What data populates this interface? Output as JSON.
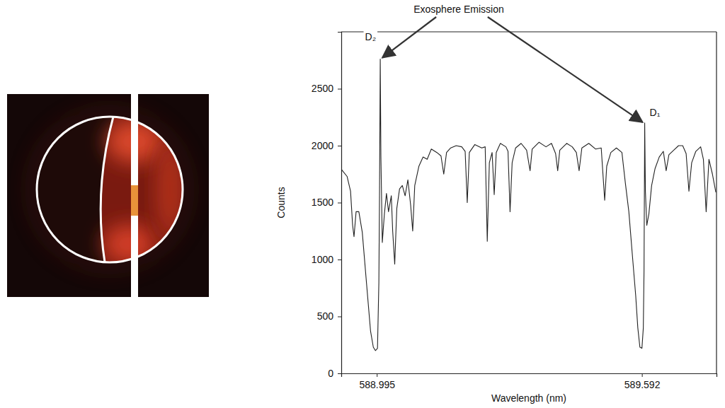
{
  "chart_data": {
    "type": "line",
    "x_label": "Wavelength (nm)",
    "y_label": "Counts",
    "annotation": "Exosphere Emission",
    "peak_labels": [
      "D₂",
      "D₁"
    ],
    "color": "#222222",
    "grid": false,
    "xlim": [
      588.915,
      589.76
    ],
    "ylim": [
      0,
      3000
    ],
    "xticks": [
      588.995,
      589.592
    ],
    "yticks": [
      0,
      500,
      1000,
      1500,
      2000,
      2500
    ],
    "x": [
      588.9157,
      588.9281,
      588.9359,
      588.9406,
      588.9437,
      588.9484,
      588.9546,
      588.9623,
      588.9717,
      588.981,
      588.9872,
      588.9919,
      588.9966,
      588.9997,
      589.0012,
      589.0028,
      589.0043,
      589.0074,
      589.0121,
      589.0168,
      589.0214,
      589.0277,
      589.0308,
      589.0354,
      589.0401,
      589.0463,
      589.0525,
      589.0588,
      589.065,
      589.0712,
      589.0759,
      589.0805,
      589.0899,
      589.0992,
      589.1085,
      589.1178,
      589.1303,
      589.1396,
      589.1458,
      589.1521,
      589.1614,
      589.1738,
      589.1863,
      589.194,
      589.1987,
      589.2034,
      589.2158,
      589.2314,
      589.2391,
      589.2438,
      589.2485,
      589.2547,
      589.2594,
      589.264,
      589.2733,
      589.2858,
      589.2905,
      589.2951,
      589.2998,
      589.3076,
      589.32,
      589.3324,
      589.3402,
      589.3449,
      589.3604,
      589.376,
      589.3884,
      589.3977,
      589.4024,
      589.4071,
      589.4226,
      589.4351,
      589.4444,
      589.4506,
      589.4568,
      589.4724,
      589.4879,
      589.5004,
      589.5082,
      589.5128,
      589.5221,
      589.5346,
      589.547,
      589.5548,
      589.5626,
      589.5703,
      589.5781,
      589.5828,
      589.5875,
      589.5921,
      589.5952,
      589.5968,
      589.5983,
      589.5999,
      589.603,
      589.6077,
      589.6139,
      589.6217,
      589.631,
      589.6403,
      589.6466,
      589.6528,
      589.6637,
      589.6745,
      589.6839,
      589.6916,
      589.6979,
      589.7041,
      589.7134,
      589.7243,
      589.7305,
      589.7367,
      589.743,
      589.7508,
      589.7585
    ],
    "values": [
      1790,
      1730,
      1600,
      1300,
      1200,
      1420,
      1420,
      1240,
      800,
      370,
      230,
      200,
      220,
      800,
      1600,
      2760,
      1900,
      1150,
      1400,
      1580,
      1420,
      1560,
      1250,
      960,
      1450,
      1620,
      1650,
      1560,
      1700,
      1480,
      1250,
      1650,
      1820,
      1900,
      1880,
      1970,
      1940,
      1910,
      1750,
      1940,
      1980,
      2000,
      1990,
      1950,
      1500,
      1940,
      2010,
      1980,
      1990,
      1160,
      1850,
      1940,
      1570,
      1940,
      2020,
      1990,
      1950,
      1420,
      1850,
      1980,
      2020,
      1960,
      1780,
      1970,
      2030,
      1990,
      2020,
      1930,
      1780,
      1960,
      2020,
      1990,
      1940,
      1780,
      1980,
      2020,
      1970,
      1980,
      1520,
      1820,
      1940,
      1980,
      1940,
      1670,
      1420,
      1050,
      680,
      400,
      230,
      220,
      400,
      900,
      2200,
      1600,
      1300,
      1400,
      1650,
      1800,
      1900,
      1950,
      1780,
      1920,
      1960,
      2000,
      2000,
      1930,
      1600,
      1850,
      1950,
      1990,
      1880,
      1420,
      1880,
      1750,
      1590
    ]
  }
}
